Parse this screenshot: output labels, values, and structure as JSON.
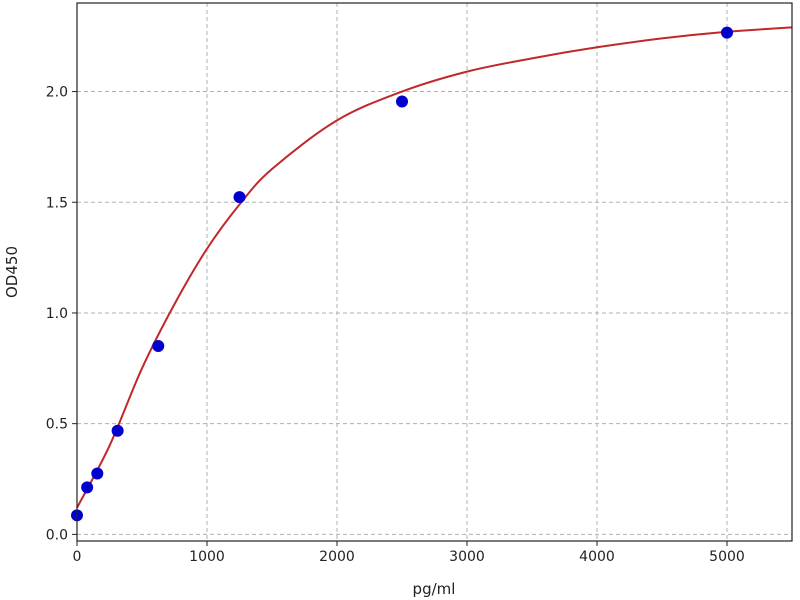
{
  "chart_data": {
    "type": "scatter",
    "title": "",
    "xlabel": "pg/ml",
    "ylabel": "OD450",
    "xlim": [
      0,
      5500
    ],
    "ylim": [
      -0.03,
      2.4
    ],
    "grid": true,
    "x_ticks": [
      "0",
      "1000",
      "2000",
      "3000",
      "4000",
      "5000"
    ],
    "y_ticks": [
      "0.0",
      "0.5",
      "1.0",
      "1.5",
      "2.0"
    ],
    "points": {
      "x": [
        0,
        78.125,
        156.25,
        312.5,
        625,
        1250,
        2500,
        5000
      ],
      "y": [
        0.086,
        0.212,
        0.275,
        0.468,
        0.851,
        1.523,
        1.955,
        2.266
      ],
      "color": "#0000cc"
    },
    "fit_curve": {
      "x": [
        0,
        250,
        500,
        750,
        1000,
        1250,
        1500,
        2000,
        2500,
        3000,
        3500,
        4000,
        4500,
        5000,
        5500
      ],
      "y": [
        0.12,
        0.4,
        0.75,
        1.04,
        1.29,
        1.49,
        1.65,
        1.87,
        2.0,
        2.09,
        2.15,
        2.2,
        2.24,
        2.27,
        2.29
      ],
      "color": "#c0282a"
    }
  }
}
